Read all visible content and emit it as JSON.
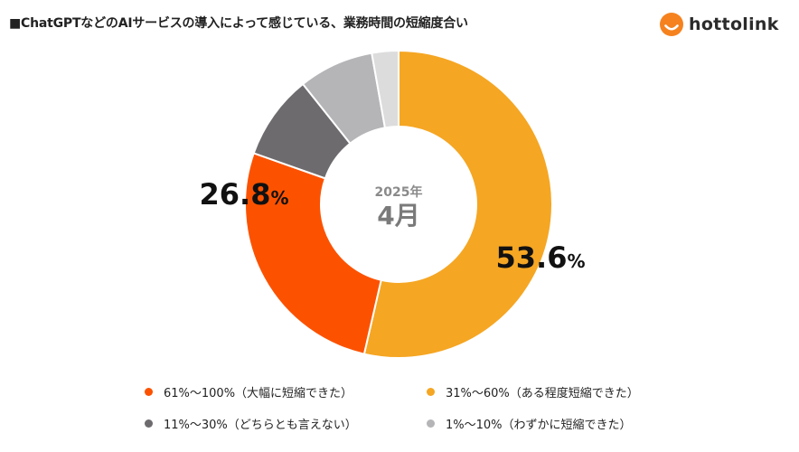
{
  "title": "■ChatGPTなどのAIサービスの導入によって感じている、業務時間の短縮度合い",
  "logo": {
    "text": "hottolink",
    "icon": "hottolink-logo-icon",
    "color": "#f5821f"
  },
  "center": {
    "year": "2025年",
    "month": "4月"
  },
  "chart_data": {
    "type": "pie",
    "donut": true,
    "title": "■ChatGPTなどのAIサービスの導入によって感じている、業務時間の短縮度合い",
    "start": "12 o'clock",
    "direction": "clockwise",
    "legend_position": "bottom",
    "slices": [
      {
        "label": "31%〜60%（ある程度短縮できた）",
        "value": 53.6,
        "color": "#f5a623",
        "show_label": true,
        "display": "53.6",
        "unit": "%"
      },
      {
        "label": "61%〜100%（大幅に短縮できた）",
        "value": 26.8,
        "color": "#fc5200",
        "show_label": true,
        "display": "26.8",
        "unit": "%"
      },
      {
        "label": "11%〜30%（どちらとも言えない）",
        "value": 8.9,
        "color": "#6d6b6e",
        "show_label": false,
        "display": "",
        "unit": ""
      },
      {
        "label": "1%〜10%（わずかに短縮できた）",
        "value": 7.9,
        "color": "#b5b4b7",
        "show_label": false,
        "display": "",
        "unit": ""
      },
      {
        "label": "",
        "value": 2.8,
        "color": "#dcdcdc",
        "show_label": false,
        "display": "",
        "unit": ""
      }
    ]
  },
  "legend": [
    {
      "label": "61%〜100%（大幅に短縮できた）",
      "color": "#fc5200"
    },
    {
      "label": "31%〜60%（ある程度短縮できた）",
      "color": "#f5a623"
    },
    {
      "label": "11%〜30%（どちらとも言えない）",
      "color": "#6d6b6e"
    },
    {
      "label": "1%〜10%（わずかに短縮できた）",
      "color": "#b5b4b7"
    }
  ]
}
